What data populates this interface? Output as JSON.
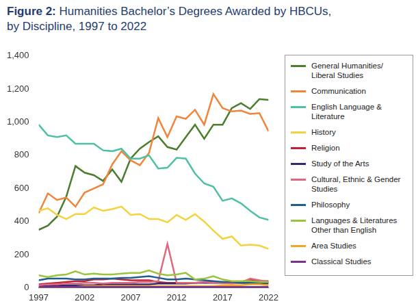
{
  "chart_data": {
    "type": "line",
    "title": "Figure 2: Humanities Bachelor’s Degrees Awarded by HBCUs, by Discipline, 1997 to 2022",
    "x": [
      1997,
      1998,
      1999,
      2000,
      2001,
      2002,
      2003,
      2004,
      2005,
      2006,
      2007,
      2008,
      2009,
      2010,
      2011,
      2012,
      2013,
      2014,
      2015,
      2016,
      2017,
      2018,
      2019,
      2020,
      2021,
      2022
    ],
    "xlim": [
      1997,
      2022
    ],
    "xticks": [
      1997,
      2002,
      2007,
      2012,
      2017,
      2022
    ],
    "ylim": [
      0,
      1400
    ],
    "yticks": [
      0,
      200,
      400,
      600,
      800,
      {
        "value": 1000,
        "label": "1,000"
      },
      {
        "value": 1200,
        "label": "1,200"
      },
      {
        "value": 1400,
        "label": "1,400"
      }
    ],
    "grid": false,
    "legend": "right",
    "series": [
      {
        "name": "General Humanities/ Liberal Studies",
        "color": "#4a7d2e",
        "values": [
          350,
          375,
          430,
          550,
          735,
          695,
          680,
          645,
          715,
          640,
          780,
          840,
          880,
          915,
          850,
          835,
          910,
          985,
          900,
          985,
          985,
          1085,
          1115,
          1080,
          1140,
          1135
        ]
      },
      {
        "name": "Communication",
        "color": "#f0843a",
        "values": [
          450,
          570,
          530,
          545,
          490,
          575,
          600,
          625,
          745,
          825,
          770,
          740,
          815,
          1025,
          910,
          1035,
          1020,
          1075,
          985,
          1170,
          1085,
          1065,
          1070,
          1050,
          1055,
          945
        ]
      },
      {
        "name": "English Language & Literature",
        "color": "#4fbfa6",
        "values": [
          985,
          920,
          910,
          920,
          870,
          870,
          870,
          830,
          825,
          840,
          780,
          780,
          800,
          720,
          725,
          785,
          780,
          690,
          630,
          610,
          525,
          540,
          510,
          465,
          425,
          410
        ]
      },
      {
        "name": "History",
        "color": "#f4d23c",
        "values": [
          465,
          480,
          440,
          415,
          445,
          445,
          485,
          465,
          475,
          490,
          440,
          445,
          415,
          415,
          395,
          440,
          410,
          445,
          400,
          345,
          295,
          310,
          255,
          260,
          255,
          235
        ]
      },
      {
        "name": "Religion",
        "color": "#c2203a",
        "values": [
          20,
          25,
          30,
          35,
          40,
          40,
          50,
          50,
          55,
          50,
          45,
          45,
          45,
          35,
          30,
          30,
          30,
          30,
          35,
          35,
          35,
          35,
          35,
          50,
          40,
          40
        ]
      },
      {
        "name": "Study of the Arts",
        "color": "#2e2a6e",
        "values": [
          10,
          10,
          15,
          15,
          15,
          15,
          15,
          20,
          20,
          20,
          20,
          20,
          20,
          25,
          25,
          25,
          25,
          30,
          30,
          30,
          30,
          30,
          30,
          30,
          30,
          25
        ]
      },
      {
        "name": "Cultural, Ethnic & Gender Studies",
        "color": "#e0687e",
        "values": [
          15,
          20,
          20,
          25,
          25,
          30,
          30,
          25,
          30,
          30,
          30,
          35,
          35,
          40,
          265,
          30,
          30,
          30,
          35,
          30,
          30,
          25,
          30,
          55,
          45,
          35
        ]
      },
      {
        "name": "Philosophy",
        "color": "#1f5f8b",
        "values": [
          45,
          55,
          55,
          55,
          50,
          50,
          55,
          55,
          55,
          60,
          60,
          65,
          70,
          60,
          50,
          50,
          55,
          50,
          45,
          40,
          35,
          35,
          30,
          30,
          30,
          30
        ]
      },
      {
        "name": "Languages & Literatures Other than English",
        "color": "#9cc33c",
        "values": [
          75,
          65,
          75,
          80,
          100,
          80,
          85,
          80,
          80,
          85,
          90,
          90,
          105,
          85,
          75,
          80,
          90,
          50,
          55,
          70,
          50,
          40,
          40,
          40,
          35,
          35
        ]
      },
      {
        "name": "Area Studies",
        "color": "#f4a623",
        "values": [
          5,
          5,
          5,
          5,
          5,
          10,
          10,
          10,
          10,
          10,
          10,
          10,
          10,
          10,
          10,
          10,
          10,
          10,
          10,
          10,
          15,
          15,
          15,
          20,
          20,
          15
        ]
      },
      {
        "name": "Classical Studies",
        "color": "#7b2f8e",
        "values": [
          5,
          5,
          5,
          5,
          5,
          5,
          5,
          5,
          5,
          5,
          5,
          5,
          5,
          5,
          5,
          5,
          5,
          5,
          5,
          5,
          5,
          5,
          5,
          5,
          5,
          5
        ]
      }
    ]
  }
}
